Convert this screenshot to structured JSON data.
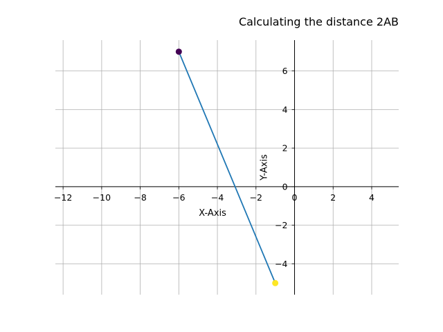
{
  "chart_data": {
    "type": "line",
    "title": "Calculating the distance 2AB",
    "xlabel": "X-Axis",
    "ylabel": "Y-Axis",
    "xlim": [
      -12.4,
      5.4
    ],
    "ylim": [
      -5.6,
      7.6
    ],
    "xticks": [
      -12,
      -10,
      -8,
      -6,
      -4,
      -2,
      0,
      2,
      4
    ],
    "yticks": [
      -4,
      -2,
      0,
      2,
      4,
      6
    ],
    "grid": true,
    "series": [
      {
        "x": [
          -6,
          -1
        ],
        "y": [
          7,
          -5
        ],
        "color": "#1f77b4"
      }
    ],
    "points": [
      {
        "x": -6,
        "y": 7,
        "color": "#440154"
      },
      {
        "x": -1,
        "y": -5,
        "color": "#fde725"
      }
    ]
  }
}
